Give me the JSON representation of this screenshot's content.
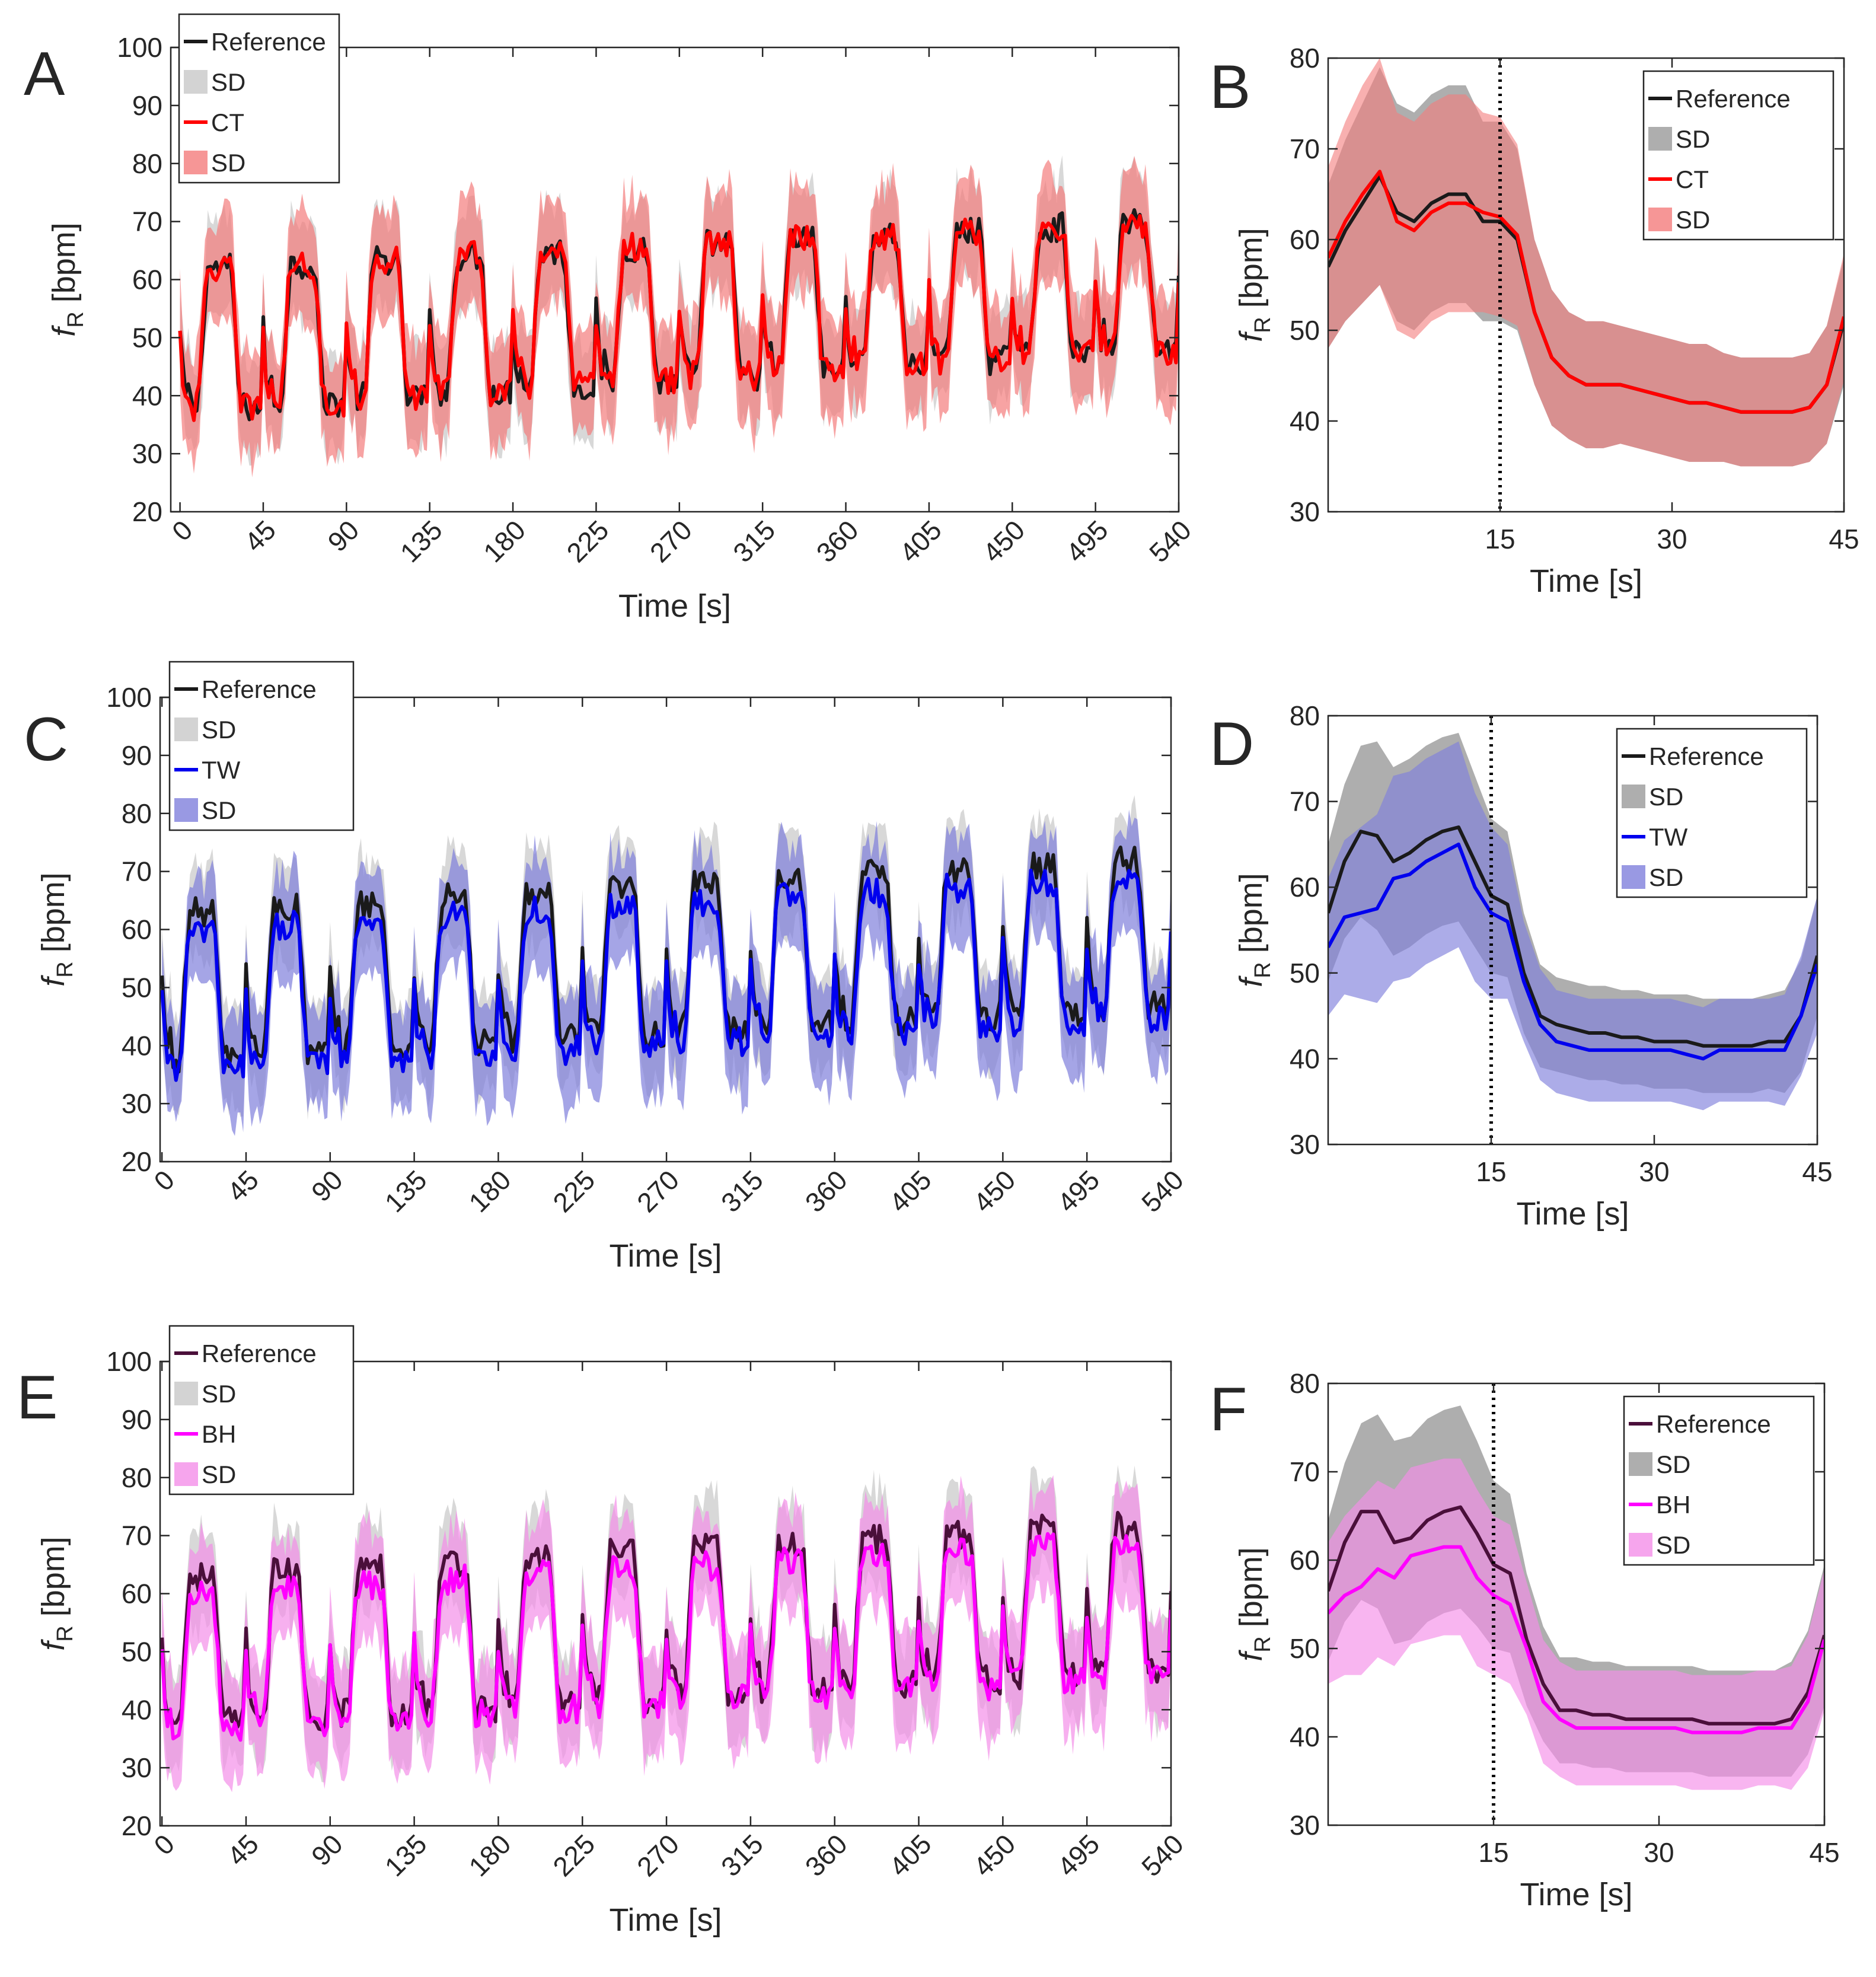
{
  "figure": {
    "background": "#ffffff",
    "axis_color": "#262626"
  },
  "chart_data": [
    {
      "panel": "A",
      "type": "line",
      "title": "",
      "xlabel": "Time [s]",
      "ylabel": "fR [bpm]",
      "ylabel_main": "f",
      "ylabel_sub": "R",
      "ylabel_unit": "[bpm]",
      "xlim": [
        -5,
        540
      ],
      "ylim": [
        20,
        100
      ],
      "xticks": [
        0,
        45,
        90,
        135,
        180,
        225,
        270,
        315,
        360,
        405,
        450,
        495,
        540
      ],
      "xtick_labels": [
        "0",
        "45",
        "90",
        "135",
        "180",
        "225",
        "270",
        "315",
        "360",
        "405",
        "450",
        "495",
        "540"
      ],
      "xtick_rotation": -45,
      "yticks": [
        20,
        30,
        40,
        50,
        60,
        70,
        80,
        90,
        100
      ],
      "ytick_labels": [
        "20",
        "30",
        "40",
        "50",
        "60",
        "70",
        "80",
        "90",
        "100"
      ],
      "grid": false,
      "legend_position": "top-left",
      "legend": [
        "Reference",
        "SD",
        "CT",
        "SD"
      ],
      "series": [
        {
          "name": "Reference",
          "kind": "line",
          "color": "#1a1a1a",
          "cycle": 45,
          "offset": 0,
          "mean_base": 38,
          "mean_base_step": 0.9,
          "mean_peak": 62,
          "mean_peak_step": 0.7,
          "sd": 8
        },
        {
          "name": "CT",
          "kind": "line",
          "color": "#ff0000",
          "band_color": "#f47c7c",
          "band_opacity": 0.7,
          "cycle": 45,
          "offset": 0,
          "mean_base": 38,
          "mean_base_step": 0.9,
          "mean_peak": 62,
          "mean_peak_step": 0.7,
          "sd": 9
        }
      ]
    },
    {
      "panel": "B",
      "type": "line",
      "title": "",
      "xlabel": "Time [s]",
      "ylabel": "fR [bpm]",
      "ylabel_main": "f",
      "ylabel_sub": "R",
      "ylabel_unit": "[bpm]",
      "xlim": [
        0,
        45
      ],
      "ylim": [
        30,
        80
      ],
      "xticks": [
        15,
        30,
        45
      ],
      "xtick_labels": [
        "15",
        "30",
        "45"
      ],
      "yticks": [
        30,
        40,
        50,
        60,
        70,
        80
      ],
      "ytick_labels": [
        "30",
        "40",
        "50",
        "60",
        "70",
        "80"
      ],
      "vline_x": 15,
      "grid": false,
      "legend_position": "top-right",
      "legend": [
        "Reference",
        "SD",
        "CT",
        "SD"
      ],
      "x": [
        0,
        1.5,
        3,
        4.5,
        6,
        7.5,
        9,
        10.5,
        12,
        13.5,
        15,
        16.5,
        18,
        19.5,
        21,
        22.5,
        24,
        25.5,
        27,
        28.5,
        30,
        31.5,
        33,
        34.5,
        36,
        37.5,
        39,
        40.5,
        42,
        43.5,
        45
      ],
      "series": [
        {
          "name": "Reference",
          "color": "#1a1a1a",
          "band_color": "#9a9a9a",
          "band_opacity": 0.8,
          "values": [
            57,
            61,
            64,
            67,
            63,
            62,
            64,
            65,
            65,
            62,
            62,
            60,
            52,
            47,
            45,
            44,
            44,
            44,
            43.5,
            43,
            42.5,
            42,
            42,
            41.5,
            41,
            41,
            41,
            41,
            41.5,
            44,
            51
          ],
          "sd": [
            9,
            10,
            11,
            12,
            12,
            12,
            12,
            12,
            12,
            11,
            11,
            10,
            8,
            7.5,
            7,
            7,
            7,
            6.5,
            6.5,
            6.5,
            6.5,
            6.5,
            6.5,
            6,
            6,
            6,
            6,
            6,
            6,
            6.5,
            7
          ]
        },
        {
          "name": "CT",
          "color": "#ff0000",
          "band_color": "#f47c7c",
          "band_opacity": 0.6,
          "values": [
            58,
            62,
            65,
            67.5,
            62,
            61,
            63,
            64,
            64,
            63,
            62.5,
            60.5,
            52,
            47,
            45,
            44,
            44,
            44,
            43.5,
            43,
            42.5,
            42,
            42,
            41.5,
            41,
            41,
            41,
            41,
            41.5,
            44,
            51.5
          ],
          "sd": [
            10,
            11,
            12,
            12.5,
            12,
            12,
            12,
            12,
            12,
            11,
            11,
            10,
            8,
            7.5,
            7,
            7,
            7,
            6.5,
            6.5,
            6.5,
            6.5,
            6.5,
            6.5,
            6,
            6,
            6,
            6,
            6,
            6,
            6.5,
            7
          ]
        }
      ]
    },
    {
      "panel": "C",
      "type": "line",
      "title": "",
      "xlabel": "Time [s]",
      "ylabel": "fR [bpm]",
      "ylabel_main": "f",
      "ylabel_sub": "R",
      "ylabel_unit": "[bpm]",
      "xlim": [
        -1,
        540
      ],
      "ylim": [
        20,
        100
      ],
      "xticks": [
        0,
        45,
        90,
        135,
        180,
        225,
        270,
        315,
        360,
        405,
        450,
        495,
        540
      ],
      "xtick_labels": [
        "0",
        "45",
        "90",
        "135",
        "180",
        "225",
        "270",
        "315",
        "360",
        "405",
        "450",
        "495",
        "540"
      ],
      "xtick_rotation": -45,
      "yticks": [
        20,
        30,
        40,
        50,
        60,
        70,
        80,
        90,
        100
      ],
      "ytick_labels": [
        "20",
        "30",
        "40",
        "50",
        "60",
        "70",
        "80",
        "90",
        "100"
      ],
      "grid": false,
      "legend_position": "top-left",
      "legend": [
        "Reference",
        "SD",
        "TW",
        "SD"
      ],
      "series": [
        {
          "name": "Reference",
          "kind": "line",
          "color": "#1a1a1a",
          "cycle": 45,
          "offset": 0,
          "mean_base": 38,
          "mean_base_step": 0.8,
          "mean_peak": 63,
          "mean_peak_step": 0.8,
          "sd": 8
        },
        {
          "name": "TW",
          "kind": "line",
          "color": "#0000ee",
          "band_color": "#7f7fdc",
          "band_opacity": 0.7,
          "cycle": 45,
          "offset": 0,
          "mean_base": 36,
          "mean_base_step": 0.8,
          "mean_peak": 60,
          "mean_peak_step": 0.8,
          "sd": 9
        }
      ]
    },
    {
      "panel": "D",
      "type": "line",
      "title": "",
      "xlabel": "Time [s]",
      "ylabel": "fR [bpm]",
      "ylabel_main": "f",
      "ylabel_sub": "R",
      "ylabel_unit": "[bpm]",
      "xlim": [
        0,
        45
      ],
      "ylim": [
        30,
        80
      ],
      "xticks": [
        15,
        30,
        45
      ],
      "xtick_labels": [
        "15",
        "30",
        "45"
      ],
      "yticks": [
        30,
        40,
        50,
        60,
        70,
        80
      ],
      "ytick_labels": [
        "30",
        "40",
        "50",
        "60",
        "70",
        "80"
      ],
      "vline_x": 15,
      "grid": false,
      "legend_position": "top-right",
      "legend": [
        "Reference",
        "SD",
        "TW",
        "SD"
      ],
      "x": [
        0,
        1.5,
        3,
        4.5,
        6,
        7.5,
        9,
        10.5,
        12,
        13.5,
        15,
        16.5,
        18,
        19.5,
        21,
        22.5,
        24,
        25.5,
        27,
        28.5,
        30,
        31.5,
        33,
        34.5,
        36,
        37.5,
        39,
        40.5,
        42,
        43.5,
        45
      ],
      "series": [
        {
          "name": "Reference",
          "color": "#1a1a1a",
          "band_color": "#9a9a9a",
          "band_opacity": 0.8,
          "values": [
            57,
            63,
            66.5,
            66,
            63,
            64,
            65.5,
            66.5,
            67,
            63,
            59,
            58,
            50,
            45,
            44,
            43.5,
            43,
            43,
            42.5,
            42.5,
            42,
            42,
            42,
            41.5,
            41.5,
            41.5,
            41.5,
            42,
            42,
            45,
            52
          ],
          "sd": [
            8,
            9,
            10,
            11,
            11,
            11,
            11,
            11,
            11,
            10,
            9,
            8.5,
            7,
            6,
            5.5,
            5.5,
            5.5,
            5.5,
            5.5,
            5.5,
            5.5,
            5.5,
            5.5,
            5.5,
            5.5,
            5.5,
            5.5,
            5.5,
            6,
            6.5,
            7
          ]
        },
        {
          "name": "TW",
          "color": "#0000ee",
          "band_color": "#7f7fdc",
          "band_opacity": 0.65,
          "values": [
            53,
            56.5,
            57,
            57.5,
            61,
            61.5,
            63,
            64,
            65,
            60,
            57,
            56,
            49,
            44,
            42,
            41.5,
            41,
            41,
            41,
            41,
            41,
            41,
            40.5,
            40,
            41,
            41,
            41,
            41,
            41,
            45,
            51
          ],
          "sd": [
            8,
            9,
            10,
            11,
            12,
            12,
            12,
            12,
            12,
            11,
            10,
            9,
            7,
            6.5,
            6,
            6,
            6,
            6,
            6,
            6,
            6,
            6,
            6,
            6,
            6,
            6,
            6,
            6,
            6.5,
            7,
            8
          ]
        }
      ]
    },
    {
      "panel": "E",
      "type": "line",
      "title": "",
      "xlabel": "Time [s]",
      "ylabel": "fR [bpm]",
      "ylabel_main": "f",
      "ylabel_sub": "R",
      "ylabel_unit": "[bpm]",
      "xlim": [
        -1,
        540
      ],
      "ylim": [
        20,
        100
      ],
      "xticks": [
        0,
        45,
        90,
        135,
        180,
        225,
        270,
        315,
        360,
        405,
        450,
        495,
        540
      ],
      "xtick_labels": [
        "0",
        "45",
        "90",
        "135",
        "180",
        "225",
        "270",
        "315",
        "360",
        "405",
        "450",
        "495",
        "540"
      ],
      "xtick_rotation": -45,
      "yticks": [
        20,
        30,
        40,
        50,
        60,
        70,
        80,
        90,
        100
      ],
      "ytick_labels": [
        "20",
        "30",
        "40",
        "50",
        "60",
        "70",
        "80",
        "90",
        "100"
      ],
      "grid": false,
      "legend_position": "top-left",
      "legend": [
        "Reference",
        "SD",
        "BH",
        "SD"
      ],
      "series": [
        {
          "name": "Reference",
          "kind": "line",
          "color": "#4a0f3a",
          "cycle": 45,
          "offset": 0,
          "mean_base": 38,
          "mean_base_step": 0.8,
          "mean_peak": 63,
          "mean_peak_step": 0.8,
          "sd": 8
        },
        {
          "name": "BH",
          "kind": "line",
          "color": "#ff00ff",
          "band_color": "#f48ee8",
          "band_opacity": 0.7,
          "cycle": 45,
          "offset": 0,
          "mean_base": 37,
          "mean_base_step": 0.8,
          "mean_peak": 60,
          "mean_peak_step": 0.8,
          "sd": 9
        }
      ]
    },
    {
      "panel": "F",
      "type": "line",
      "title": "",
      "xlabel": "Time [s]",
      "ylabel": "fR [bpm]",
      "ylabel_main": "f",
      "ylabel_sub": "R",
      "ylabel_unit": "[bpm]",
      "xlim": [
        0,
        45
      ],
      "ylim": [
        30,
        80
      ],
      "xticks": [
        15,
        30,
        45
      ],
      "xtick_labels": [
        "15",
        "30",
        "45"
      ],
      "yticks": [
        30,
        40,
        50,
        60,
        70,
        80
      ],
      "ytick_labels": [
        "30",
        "40",
        "50",
        "60",
        "70",
        "80"
      ],
      "vline_x": 15,
      "grid": false,
      "legend_position": "top-right",
      "legend": [
        "Reference",
        "SD",
        "BH",
        "SD"
      ],
      "x": [
        0,
        1.5,
        3,
        4.5,
        6,
        7.5,
        9,
        10.5,
        12,
        13.5,
        15,
        16.5,
        18,
        19.5,
        21,
        22.5,
        24,
        25.5,
        27,
        28.5,
        30,
        31.5,
        33,
        34.5,
        36,
        37.5,
        39,
        40.5,
        42,
        43.5,
        45
      ],
      "series": [
        {
          "name": "Reference",
          "color": "#4a0f3a",
          "band_color": "#9a9a9a",
          "band_opacity": 0.8,
          "values": [
            56.5,
            62,
            65.5,
            65.5,
            62,
            62.5,
            64.5,
            65.5,
            66,
            63,
            59.5,
            58.5,
            51,
            46,
            43,
            43,
            42.5,
            42.5,
            42,
            42,
            42,
            42,
            42,
            41.5,
            41.5,
            41.5,
            41.5,
            41.5,
            42,
            45,
            51.5
          ],
          "sd": [
            8,
            9,
            10,
            11,
            11.5,
            11.5,
            11.5,
            11.5,
            11.5,
            10.5,
            9.5,
            9,
            7.5,
            6.5,
            6,
            6,
            6,
            6,
            6,
            6,
            6,
            6,
            6,
            6,
            6,
            6,
            6,
            6,
            6.5,
            7,
            8
          ]
        },
        {
          "name": "BH",
          "color": "#ff00ff",
          "band_color": "#f48ee8",
          "band_opacity": 0.65,
          "values": [
            54,
            56,
            57,
            59,
            58,
            60.5,
            61,
            61.5,
            61.5,
            58,
            56,
            55,
            50,
            44,
            42,
            41,
            41,
            41,
            41,
            41,
            41,
            41,
            40.5,
            40.5,
            40.5,
            40.5,
            41,
            41,
            41,
            44,
            51
          ],
          "sd": [
            8,
            9,
            10,
            10,
            10,
            10,
            10,
            10,
            10,
            10,
            9,
            9,
            7.5,
            7,
            6.5,
            6.5,
            6.5,
            6.5,
            6.5,
            6.5,
            6.5,
            6.5,
            6.5,
            6.5,
            6.5,
            6.5,
            6.5,
            6.5,
            7,
            7.5,
            8
          ]
        }
      ]
    }
  ]
}
